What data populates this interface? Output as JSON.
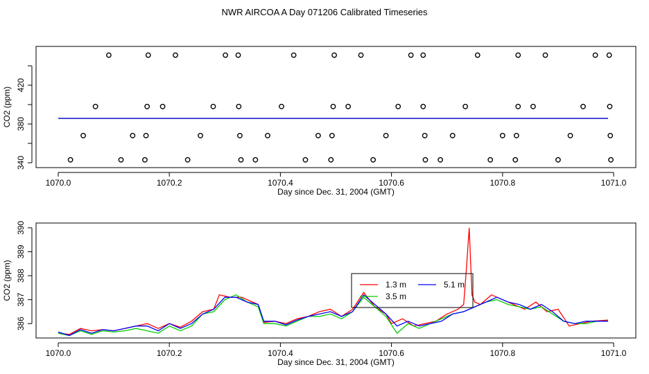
{
  "page_title": "NWR AIRCOA A  Day 071206  Calibrated Timeseries",
  "chart_data": [
    {
      "type": "scatter",
      "panel": "top",
      "xlabel": "Day since Dec. 31, 2004 (GMT)",
      "ylabel": "CO2 (ppm)",
      "xlim": [
        1070.0,
        1071.0
      ],
      "ylim": [
        335,
        460
      ],
      "xticks": [
        1070.0,
        1070.2,
        1070.4,
        1070.6,
        1070.8,
        1071.0
      ],
      "xtick_labels": [
        "1070.0",
        "1070.2",
        "1070.4",
        "1070.6",
        "1070.8",
        "1071.0"
      ],
      "yticks": [
        340,
        380,
        420
      ],
      "ytick_labels": [
        "340",
        "380",
        "420"
      ],
      "yticks_minor": [
        360,
        400,
        440
      ],
      "points": [
        {
          "x": 1070.091,
          "y": 451
        },
        {
          "x": 1070.162,
          "y": 451
        },
        {
          "x": 1070.211,
          "y": 451
        },
        {
          "x": 1070.301,
          "y": 451
        },
        {
          "x": 1070.324,
          "y": 451
        },
        {
          "x": 1070.424,
          "y": 451
        },
        {
          "x": 1070.497,
          "y": 451
        },
        {
          "x": 1070.545,
          "y": 451
        },
        {
          "x": 1070.635,
          "y": 451
        },
        {
          "x": 1070.657,
          "y": 451
        },
        {
          "x": 1070.755,
          "y": 451
        },
        {
          "x": 1070.828,
          "y": 451
        },
        {
          "x": 1070.877,
          "y": 451
        },
        {
          "x": 1070.967,
          "y": 451
        },
        {
          "x": 1070.992,
          "y": 451
        },
        {
          "x": 1070.067,
          "y": 398
        },
        {
          "x": 1070.16,
          "y": 398
        },
        {
          "x": 1070.188,
          "y": 398
        },
        {
          "x": 1070.279,
          "y": 398
        },
        {
          "x": 1070.325,
          "y": 398
        },
        {
          "x": 1070.402,
          "y": 398
        },
        {
          "x": 1070.495,
          "y": 398
        },
        {
          "x": 1070.522,
          "y": 398
        },
        {
          "x": 1070.612,
          "y": 398
        },
        {
          "x": 1070.657,
          "y": 398
        },
        {
          "x": 1070.733,
          "y": 398
        },
        {
          "x": 1070.828,
          "y": 398
        },
        {
          "x": 1070.855,
          "y": 398
        },
        {
          "x": 1070.945,
          "y": 398
        },
        {
          "x": 1070.993,
          "y": 398
        },
        {
          "x": 1070.045,
          "y": 368
        },
        {
          "x": 1070.134,
          "y": 368
        },
        {
          "x": 1070.158,
          "y": 368
        },
        {
          "x": 1070.256,
          "y": 368
        },
        {
          "x": 1070.327,
          "y": 368
        },
        {
          "x": 1070.377,
          "y": 368
        },
        {
          "x": 1070.468,
          "y": 368
        },
        {
          "x": 1070.493,
          "y": 368
        },
        {
          "x": 1070.59,
          "y": 368
        },
        {
          "x": 1070.66,
          "y": 368
        },
        {
          "x": 1070.71,
          "y": 368
        },
        {
          "x": 1070.8,
          "y": 368
        },
        {
          "x": 1070.825,
          "y": 368
        },
        {
          "x": 1070.922,
          "y": 368
        },
        {
          "x": 1070.994,
          "y": 368
        },
        {
          "x": 1070.022,
          "y": 343
        },
        {
          "x": 1070.113,
          "y": 343
        },
        {
          "x": 1070.156,
          "y": 343
        },
        {
          "x": 1070.233,
          "y": 343
        },
        {
          "x": 1070.329,
          "y": 343
        },
        {
          "x": 1070.355,
          "y": 343
        },
        {
          "x": 1070.445,
          "y": 343
        },
        {
          "x": 1070.491,
          "y": 343
        },
        {
          "x": 1070.567,
          "y": 343
        },
        {
          "x": 1070.661,
          "y": 343
        },
        {
          "x": 1070.688,
          "y": 343
        },
        {
          "x": 1070.778,
          "y": 343
        },
        {
          "x": 1070.823,
          "y": 343
        },
        {
          "x": 1070.9,
          "y": 343
        },
        {
          "x": 1070.995,
          "y": 343
        }
      ],
      "series": [
        {
          "name": "1.3 m",
          "color": "#ff0000",
          "x": [
            1070.0,
            1070.99
          ],
          "y": [
            385.7,
            385.7
          ]
        },
        {
          "name": "3.5 m",
          "color": "#00cc00",
          "x": [
            1070.0,
            1070.99
          ],
          "y": [
            385.7,
            385.7
          ]
        },
        {
          "name": "5.1 m",
          "color": "#0000ff",
          "x": [
            1070.0,
            1070.99
          ],
          "y": [
            385.8,
            385.8
          ]
        }
      ]
    },
    {
      "type": "line",
      "panel": "bottom",
      "xlabel": "Day since Dec. 31, 2004 (GMT)",
      "ylabel": "CO2 (ppm)",
      "xlim": [
        1070.0,
        1071.0
      ],
      "ylim": [
        385.4,
        390.2
      ],
      "xticks": [
        1070.0,
        1070.2,
        1070.4,
        1070.6,
        1070.8,
        1071.0
      ],
      "xtick_labels": [
        "1070.0",
        "1070.2",
        "1070.4",
        "1070.6",
        "1070.8",
        "1071.0"
      ],
      "yticks": [
        386,
        387,
        388,
        389,
        390
      ],
      "ytick_labels": [
        "386",
        "387",
        "388",
        "389",
        "390"
      ],
      "legend": {
        "position": "top-center",
        "entries": [
          "1.3 m",
          "3.5 m",
          "5.1 m"
        ]
      },
      "series": [
        {
          "name": "1.3 m",
          "color": "#ff0000",
          "x": [
            1070.0,
            1070.02,
            1070.04,
            1070.06,
            1070.08,
            1070.1,
            1070.12,
            1070.14,
            1070.16,
            1070.18,
            1070.2,
            1070.22,
            1070.24,
            1070.26,
            1070.28,
            1070.29,
            1070.31,
            1070.33,
            1070.35,
            1070.36,
            1070.37,
            1070.39,
            1070.41,
            1070.43,
            1070.45,
            1070.47,
            1070.49,
            1070.51,
            1070.53,
            1070.55,
            1070.57,
            1070.59,
            1070.6,
            1070.62,
            1070.64,
            1070.66,
            1070.68,
            1070.7,
            1070.72,
            1070.73,
            1070.735,
            1070.74,
            1070.745,
            1070.75,
            1070.76,
            1070.78,
            1070.8,
            1070.82,
            1070.84,
            1070.86,
            1070.88,
            1070.9,
            1070.92,
            1070.94,
            1070.96,
            1070.99
          ],
          "y": [
            385.6,
            385.55,
            385.8,
            385.7,
            385.75,
            385.7,
            385.8,
            385.9,
            386.0,
            385.8,
            386.0,
            385.85,
            386.1,
            386.5,
            386.6,
            387.2,
            387.1,
            387.1,
            386.9,
            386.8,
            386.05,
            386.1,
            386.0,
            386.2,
            386.3,
            386.5,
            386.6,
            386.3,
            386.6,
            387.3,
            386.7,
            386.4,
            386.0,
            386.2,
            385.9,
            386.0,
            386.1,
            386.4,
            386.6,
            386.8,
            388.3,
            390.0,
            387.2,
            386.9,
            386.8,
            387.2,
            387.0,
            386.8,
            386.6,
            386.9,
            386.5,
            386.6,
            385.9,
            386.0,
            386.1,
            386.15
          ]
        },
        {
          "name": "3.5 m",
          "color": "#00cc00",
          "x": [
            1070.0,
            1070.02,
            1070.04,
            1070.06,
            1070.08,
            1070.1,
            1070.12,
            1070.14,
            1070.16,
            1070.18,
            1070.2,
            1070.22,
            1070.24,
            1070.26,
            1070.28,
            1070.3,
            1070.32,
            1070.34,
            1070.36,
            1070.37,
            1070.39,
            1070.41,
            1070.43,
            1070.45,
            1070.47,
            1070.49,
            1070.51,
            1070.53,
            1070.55,
            1070.57,
            1070.59,
            1070.61,
            1070.63,
            1070.65,
            1070.67,
            1070.69,
            1070.71,
            1070.73,
            1070.75,
            1070.77,
            1070.79,
            1070.81,
            1070.83,
            1070.85,
            1070.87,
            1070.89,
            1070.91,
            1070.93,
            1070.95,
            1070.97,
            1070.99
          ],
          "y": [
            385.6,
            385.5,
            385.7,
            385.55,
            385.7,
            385.65,
            385.7,
            385.8,
            385.7,
            385.6,
            385.9,
            385.7,
            385.9,
            386.4,
            386.5,
            387.0,
            387.2,
            386.9,
            386.7,
            386.0,
            386.0,
            385.9,
            386.1,
            386.3,
            386.3,
            386.4,
            386.2,
            386.5,
            387.1,
            386.7,
            386.3,
            385.6,
            386.0,
            385.8,
            386.0,
            386.2,
            386.4,
            386.5,
            386.7,
            386.9,
            387.0,
            386.8,
            386.7,
            386.6,
            386.7,
            386.4,
            386.1,
            386.0,
            386.0,
            386.1,
            386.1
          ]
        },
        {
          "name": "5.1 m",
          "color": "#0000ff",
          "x": [
            1070.0,
            1070.02,
            1070.04,
            1070.06,
            1070.08,
            1070.1,
            1070.12,
            1070.14,
            1070.16,
            1070.18,
            1070.2,
            1070.22,
            1070.24,
            1070.26,
            1070.28,
            1070.3,
            1070.32,
            1070.34,
            1070.36,
            1070.37,
            1070.39,
            1070.41,
            1070.43,
            1070.45,
            1070.47,
            1070.49,
            1070.51,
            1070.53,
            1070.55,
            1070.57,
            1070.59,
            1070.61,
            1070.63,
            1070.65,
            1070.67,
            1070.69,
            1070.71,
            1070.73,
            1070.75,
            1070.77,
            1070.79,
            1070.81,
            1070.83,
            1070.85,
            1070.87,
            1070.89,
            1070.91,
            1070.93,
            1070.95,
            1070.97,
            1070.99
          ],
          "y": [
            385.65,
            385.5,
            385.75,
            385.6,
            385.75,
            385.7,
            385.8,
            385.9,
            385.9,
            385.7,
            386.0,
            385.8,
            386.0,
            386.4,
            386.6,
            387.1,
            387.1,
            386.9,
            386.8,
            386.1,
            386.1,
            385.95,
            386.15,
            386.3,
            386.4,
            386.5,
            386.3,
            386.5,
            387.2,
            386.8,
            386.4,
            385.9,
            386.1,
            385.9,
            386.0,
            386.1,
            386.4,
            386.5,
            386.7,
            386.9,
            387.1,
            386.9,
            386.8,
            386.6,
            386.8,
            386.5,
            386.1,
            386.0,
            386.1,
            386.1,
            386.1
          ]
        }
      ]
    }
  ]
}
